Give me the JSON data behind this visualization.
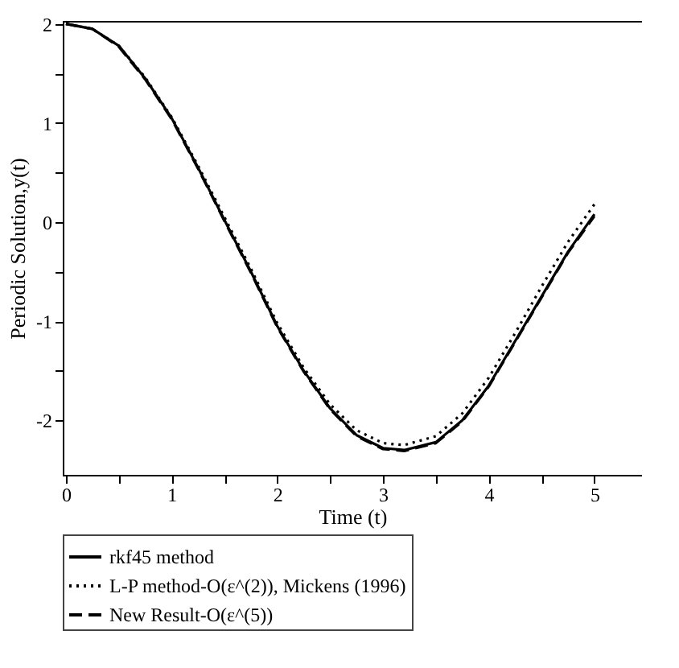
{
  "chart_data": {
    "type": "line",
    "xlabel": "Time (t)",
    "ylabel": "Periodic Solution,y(t)",
    "xlim": [
      -0.03,
      5.45
    ],
    "ylim": [
      -2.55,
      2.03
    ],
    "xticks": [
      0,
      {
        "value": 0.5,
        "label": null
      },
      1,
      {
        "value": 1.5,
        "label": null
      },
      2,
      {
        "value": 2.5,
        "label": null
      },
      3,
      {
        "value": 3.5,
        "label": null
      },
      4,
      {
        "value": 4.5,
        "label": null
      },
      5
    ],
    "yticks": [
      -2,
      {
        "value": -1.5,
        "label": null
      },
      -1,
      {
        "value": -0.5,
        "label": null
      },
      0,
      {
        "value": 0.5,
        "label": null
      },
      1,
      {
        "value": 1.5,
        "label": null
      },
      2
    ],
    "x": [
      0,
      0.25,
      0.5,
      0.75,
      1,
      1.25,
      1.5,
      1.75,
      2,
      2.25,
      2.5,
      2.75,
      3,
      3.2,
      3.5,
      3.75,
      4,
      4.25,
      4.5,
      4.75,
      5
    ],
    "legend": "bottom",
    "grid": false,
    "series": [
      {
        "name": "rkf45 method",
        "color": "#000000",
        "line_style": "solid",
        "values": [
          2,
          1.95,
          1.78,
          1.45,
          1.05,
          0.55,
          0.02,
          -0.5,
          -1.05,
          -1.5,
          -1.88,
          -2.15,
          -2.28,
          -2.3,
          -2.22,
          -2.0,
          -1.65,
          -1.2,
          -0.75,
          -0.3,
          0.08
        ]
      },
      {
        "name": "L-P method-O(ε^(2)), Mickens (1996)",
        "color": "#000000",
        "line_style": "dotted",
        "values": [
          2,
          1.95,
          1.78,
          1.46,
          1.06,
          0.57,
          0.05,
          -0.47,
          -1.02,
          -1.47,
          -1.84,
          -2.1,
          -2.23,
          -2.25,
          -2.16,
          -1.93,
          -1.57,
          -1.12,
          -0.65,
          -0.2,
          0.18
        ]
      },
      {
        "name": "New Result-O(ε^(5))",
        "color": "#000000",
        "line_style": "dashed",
        "values": [
          2,
          1.95,
          1.77,
          1.44,
          1.04,
          0.54,
          0.01,
          -0.51,
          -1.06,
          -1.51,
          -1.89,
          -2.16,
          -2.29,
          -2.31,
          -2.23,
          -2.01,
          -1.66,
          -1.21,
          -0.76,
          -0.31,
          0.06
        ]
      }
    ]
  }
}
